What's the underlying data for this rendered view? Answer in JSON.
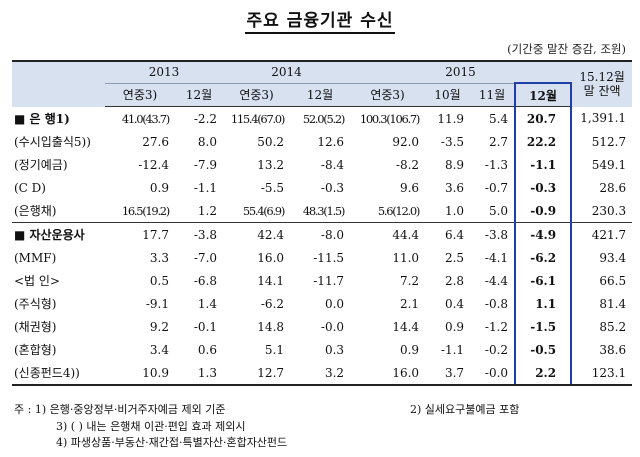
{
  "title": "주요 금융기관 수신",
  "unit": "(기간중 말잔 증감, 조원)",
  "header": {
    "years": [
      "2013",
      "2014",
      "2015"
    ],
    "sub": [
      "연중3)",
      "12월",
      "연중3)",
      "12월",
      "연중3)",
      "10월",
      "11월",
      "12월"
    ],
    "balance": "15.12월말 잔액"
  },
  "rows": [
    {
      "label": "■ 은  행1)",
      "bold": true,
      "v": [
        "41.0(43.7)",
        "-2.2",
        "115.4(67.0)",
        "52.0(5.2)",
        "100.3(106.7)",
        "11.9",
        "5.4",
        "20.7",
        "1,391.1"
      ]
    },
    {
      "label": "(수시입출식5))",
      "v": [
        "27.6",
        "8.0",
        "50.2",
        "12.6",
        "92.0",
        "-3.5",
        "2.7",
        "22.2",
        "512.7"
      ]
    },
    {
      "label": "(정기예금)",
      "v": [
        "-12.4",
        "-7.9",
        "13.2",
        "-8.4",
        "-8.2",
        "8.9",
        "-1.3",
        "-1.1",
        "549.1"
      ]
    },
    {
      "label": "(C  D)",
      "v": [
        "0.9",
        "-1.1",
        "-5.5",
        "-0.3",
        "9.6",
        "3.6",
        "-0.7",
        "-0.3",
        "28.6"
      ]
    },
    {
      "label": "(은행채)",
      "v": [
        "16.5(19.2)",
        "1.2",
        "55.4(6.9)",
        "48.3(1.5)",
        "5.6(12.0)",
        "1.0",
        "5.0",
        "-0.9",
        "230.3"
      ]
    },
    {
      "label": "■ 자산운용사",
      "bold": true,
      "sep": true,
      "v": [
        "17.7",
        "-3.8",
        "42.4",
        "-8.0",
        "44.4",
        "6.4",
        "-3.8",
        "-4.9",
        "421.7"
      ]
    },
    {
      "label": "(MMF)",
      "v": [
        "3.3",
        "-7.0",
        "16.0",
        "-11.5",
        "11.0",
        "2.5",
        "-4.1",
        "-6.2",
        "93.4"
      ]
    },
    {
      "label": "<법 인>",
      "v": [
        "0.5",
        "-6.8",
        "14.1",
        "-11.7",
        "7.2",
        "2.8",
        "-4.4",
        "-6.1",
        "66.5"
      ]
    },
    {
      "label": "(주식형)",
      "v": [
        "-9.1",
        "1.4",
        "-6.2",
        "0.0",
        "2.1",
        "0.4",
        "-0.8",
        "1.1",
        "81.4"
      ]
    },
    {
      "label": "(채권형)",
      "v": [
        "9.2",
        "-0.1",
        "14.8",
        "-0.0",
        "14.4",
        "0.9",
        "-1.2",
        "-1.5",
        "85.2"
      ]
    },
    {
      "label": "(혼합형)",
      "v": [
        "3.4",
        "0.6",
        "5.1",
        "0.3",
        "0.9",
        "-1.1",
        "-0.2",
        "-0.5",
        "38.6"
      ]
    },
    {
      "label": "(신종펀드4))",
      "last": true,
      "v": [
        "10.9",
        "1.3",
        "12.7",
        "3.2",
        "16.0",
        "3.7",
        "-0.0",
        "2.2",
        "123.1"
      ]
    }
  ],
  "notes": {
    "n1": "주 : 1) 은행·중앙정부·비거주자예금 제외 기준",
    "n2": "2) 실세요구불예금 포함",
    "n3": "3) ( ) 내는 은행채 이관·편입 효과 제외시",
    "n4": "4) 파생상품·부동산·재간접·특별자산·혼합자산펀드"
  }
}
